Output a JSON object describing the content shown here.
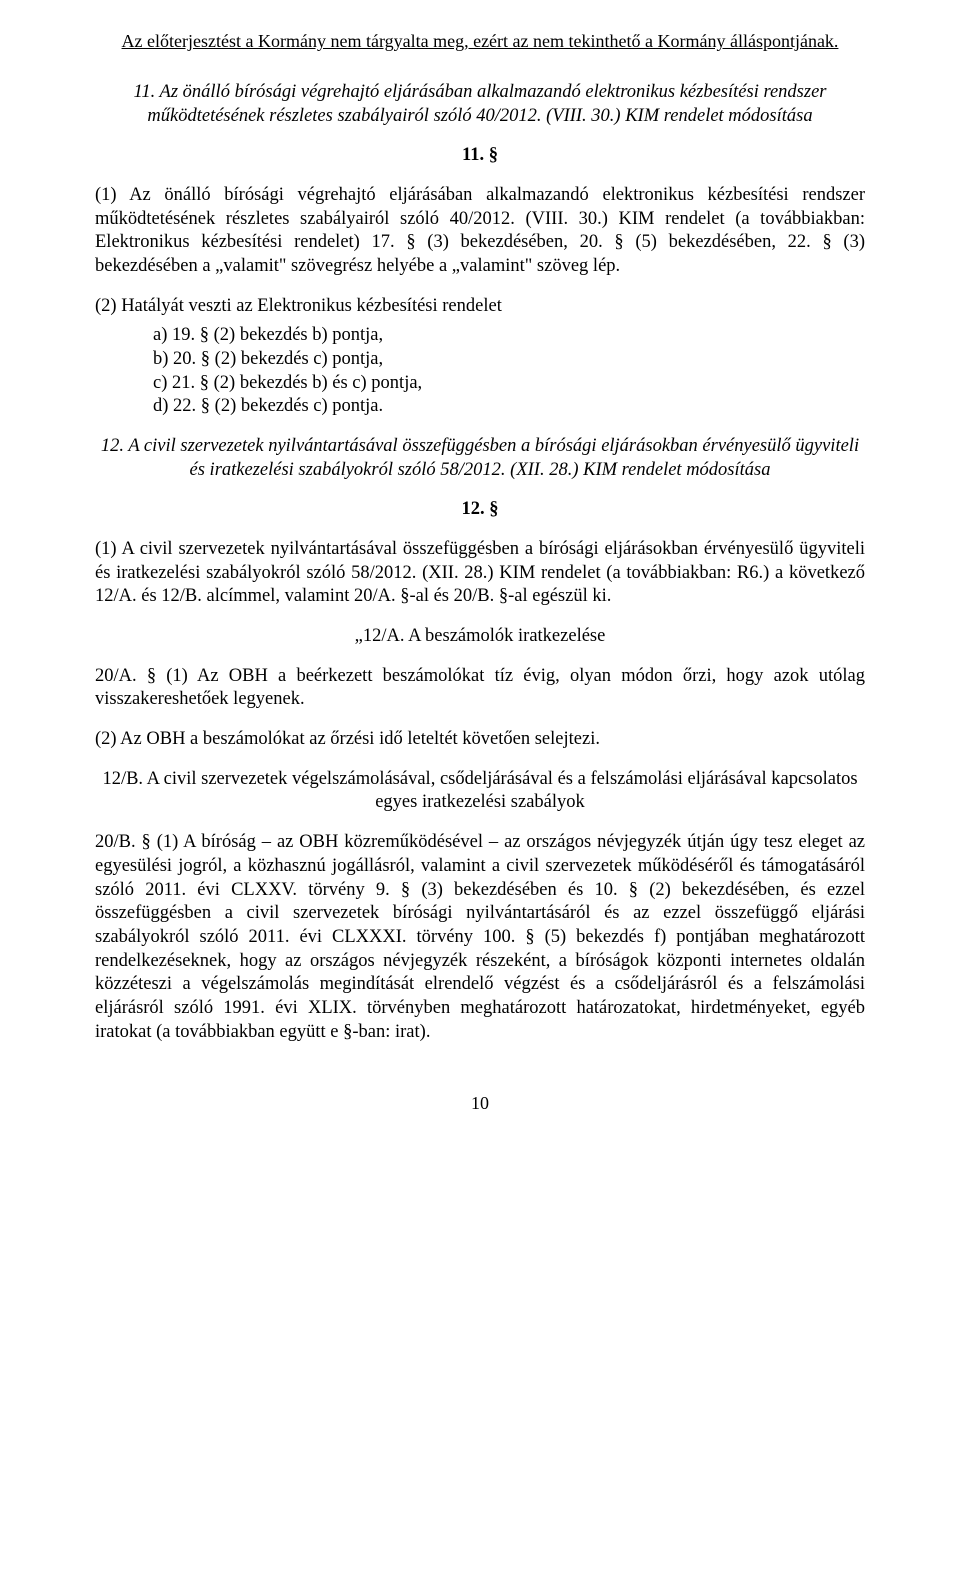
{
  "header_note": "Az előterjesztést a Kormány nem tárgyalta meg, ezért az nem tekinthető a Kormány álláspontjának.",
  "s11_title": "11. Az önálló bírósági végrehajtó eljárásában alkalmazandó elektronikus kézbesítési rendszer működtetésének részletes szabályairól szóló 40/2012. (VIII. 30.) KIM rendelet módosítása",
  "s11_num": "11. §",
  "s11_p1": "(1) Az önálló bírósági végrehajtó eljárásában alkalmazandó elektronikus kézbesítési rendszer működtetésének részletes szabályairól szóló 40/2012. (VIII. 30.) KIM rendelet (a továbbiakban: Elektronikus kézbesítési rendelet) 17. § (3) bekezdésében, 20. § (5) bekezdésében, 22. § (3) bekezdésében a „valamit\" szövegrész helyébe a „valamint\" szöveg lép.",
  "s11_p2": "(2) Hatályát veszti az Elektronikus kézbesítési rendelet",
  "s11_list": {
    "a": "a) 19. § (2) bekezdés b) pontja,",
    "b": "b) 20. § (2) bekezdés c) pontja,",
    "c": "c) 21. § (2) bekezdés b) és c) pontja,",
    "d": "d) 22. § (2) bekezdés c) pontja."
  },
  "s12_title": "12. A civil szervezetek nyilvántartásával összefüggésben a bírósági eljárásokban érvényesülő ügyviteli és iratkezelési szabályokról szóló 58/2012. (XII. 28.) KIM rendelet módosítása",
  "s12_num": "12. §",
  "s12_p1": "(1) A civil szervezetek nyilvántartásával összefüggésben a bírósági eljárásokban érvényesülő ügyviteli és iratkezelési szabályokról szóló 58/2012. (XII. 28.) KIM rendelet (a továbbiakban: R6.) a következő 12/A. és 12/B. alcímmel, valamint 20/A. §-al és 20/B. §-al egészül ki.",
  "sub12a": "„12/A. A beszámolók iratkezelése",
  "s20a_p1": "20/A. § (1) Az OBH a beérkezett beszámolókat tíz évig, olyan módon őrzi, hogy azok utólag visszakereshetőek legyenek.",
  "s20a_p2": "(2) Az OBH a beszámolókat az őrzési idő leteltét követően selejtezi.",
  "sub12b": "12/B. A civil szervezetek végelszámolásával, csődeljárásával és a felszámolási eljárásával kapcsolatos egyes iratkezelési szabályok",
  "s20b_p1": "20/B. § (1) A bíróság – az OBH közreműködésével – az országos névjegyzék útján úgy tesz eleget az egyesülési jogról, a közhasznú jogállásról, valamint a civil szervezetek működéséről és támogatásáról szóló 2011. évi CLXXV. törvény 9. § (3) bekezdésében és 10. § (2) bekezdésében, és ezzel összefüggésben a civil szervezetek bírósági nyilvántartásáról és az ezzel összefüggő eljárási szabályokról szóló 2011. évi CLXXXI. törvény 100. § (5) bekezdés f) pontjában meghatározott rendelkezéseknek, hogy az országos névjegyzék részeként, a bíróságok központi internetes oldalán közzéteszi a végelszámolás megindítását elrendelő végzést és a csődeljárásról és a felszámolási eljárásról szóló 1991. évi XLIX. törvényben meghatározott határozatokat, hirdetményeket, egyéb iratokat (a továbbiakban együtt e §-ban: irat).",
  "page_number": "10"
}
